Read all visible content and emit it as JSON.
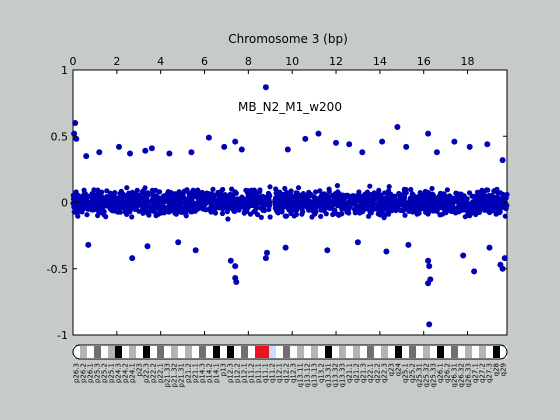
{
  "figure": {
    "background_color": "#c7cbc7",
    "axes_background_color": "#ffffff",
    "marker_color": "#0000b4",
    "zero_line_color": "#9a9a9a"
  },
  "chart_data": {
    "type": "scatter",
    "title": "Chromosome 3 (bp)",
    "annotation": "MB_N2_M1_w200",
    "xlabel": "",
    "ylabel": "",
    "xlim": [
      0,
      19.8
    ],
    "ylim": [
      -1,
      1
    ],
    "x_ticks": [
      0,
      2,
      4,
      6,
      8,
      10,
      12,
      14,
      16,
      18
    ],
    "x_tick_labels": [
      "0",
      "2",
      "4",
      "6",
      "8",
      "10",
      "12",
      "14",
      "16",
      "18"
    ],
    "x_axis_position": "top",
    "y_ticks": [
      1,
      0.5,
      0,
      -0.5,
      -1
    ],
    "y_tick_labels": [
      "1",
      "0.5",
      "0",
      "-0.5",
      "-1"
    ],
    "grid": false,
    "reference_line": {
      "y": 0
    },
    "band": {
      "x_range": [
        -0.05,
        0.45
      ],
      "y_range": [
        -0.3,
        0.3
      ],
      "note": "dense cloud of points across the chromosome"
    },
    "points": [
      {
        "x": 0.1,
        "y": 0.6
      },
      {
        "x": 0.05,
        "y": 0.52
      },
      {
        "x": 0.15,
        "y": 0.48
      },
      {
        "x": 0.6,
        "y": 0.35
      },
      {
        "x": 1.2,
        "y": 0.38
      },
      {
        "x": 2.1,
        "y": 0.42
      },
      {
        "x": 2.6,
        "y": 0.37
      },
      {
        "x": 3.3,
        "y": 0.39
      },
      {
        "x": 3.6,
        "y": 0.41
      },
      {
        "x": 4.4,
        "y": 0.37
      },
      {
        "x": 5.4,
        "y": 0.38
      },
      {
        "x": 6.2,
        "y": 0.49
      },
      {
        "x": 6.9,
        "y": 0.42
      },
      {
        "x": 7.4,
        "y": 0.46
      },
      {
        "x": 7.7,
        "y": 0.4
      },
      {
        "x": 8.8,
        "y": 0.87
      },
      {
        "x": 9.8,
        "y": 0.4
      },
      {
        "x": 10.6,
        "y": 0.48
      },
      {
        "x": 11.2,
        "y": 0.52
      },
      {
        "x": 12.0,
        "y": 0.45
      },
      {
        "x": 12.6,
        "y": 0.44
      },
      {
        "x": 13.2,
        "y": 0.38
      },
      {
        "x": 14.1,
        "y": 0.46
      },
      {
        "x": 14.8,
        "y": 0.57
      },
      {
        "x": 15.2,
        "y": 0.42
      },
      {
        "x": 16.2,
        "y": 0.52
      },
      {
        "x": 16.6,
        "y": 0.38
      },
      {
        "x": 17.4,
        "y": 0.46
      },
      {
        "x": 18.1,
        "y": 0.42
      },
      {
        "x": 18.9,
        "y": 0.44
      },
      {
        "x": 19.6,
        "y": 0.32
      },
      {
        "x": 0.7,
        "y": -0.32
      },
      {
        "x": 2.7,
        "y": -0.42
      },
      {
        "x": 3.4,
        "y": -0.33
      },
      {
        "x": 4.8,
        "y": -0.3
      },
      {
        "x": 5.6,
        "y": -0.36
      },
      {
        "x": 7.4,
        "y": -0.57
      },
      {
        "x": 7.45,
        "y": -0.6
      },
      {
        "x": 7.4,
        "y": -0.48
      },
      {
        "x": 7.2,
        "y": -0.44
      },
      {
        "x": 8.8,
        "y": -0.42
      },
      {
        "x": 8.85,
        "y": -0.38
      },
      {
        "x": 9.7,
        "y": -0.34
      },
      {
        "x": 11.6,
        "y": -0.36
      },
      {
        "x": 13.0,
        "y": -0.3
      },
      {
        "x": 14.3,
        "y": -0.37
      },
      {
        "x": 15.3,
        "y": -0.32
      },
      {
        "x": 16.2,
        "y": -0.44
      },
      {
        "x": 16.25,
        "y": -0.48
      },
      {
        "x": 16.3,
        "y": -0.58
      },
      {
        "x": 16.2,
        "y": -0.61
      },
      {
        "x": 16.25,
        "y": -0.92
      },
      {
        "x": 17.8,
        "y": -0.4
      },
      {
        "x": 18.3,
        "y": -0.52
      },
      {
        "x": 19.0,
        "y": -0.34
      },
      {
        "x": 19.5,
        "y": -0.47
      },
      {
        "x": 19.6,
        "y": -0.5
      },
      {
        "x": 19.7,
        "y": -0.42
      }
    ],
    "gap": {
      "x_range": [
        9.0,
        9.2
      ],
      "note": "centromere gap"
    }
  },
  "ideogram": {
    "centromere_color": "#e8141a",
    "highlight_color": "#c8dcff",
    "bands": [
      {
        "label": "p26.3",
        "stain": "w"
      },
      {
        "label": "p26.2",
        "stain": "g"
      },
      {
        "label": "p26.1",
        "stain": "w"
      },
      {
        "label": "p25.3",
        "stain": "g"
      },
      {
        "label": "p25.2",
        "stain": "w"
      },
      {
        "label": "p25.1",
        "stain": "g"
      },
      {
        "label": "p24.3",
        "stain": "k"
      },
      {
        "label": "p24.2",
        "stain": "w"
      },
      {
        "label": "p24.1",
        "stain": "g"
      },
      {
        "label": "p23",
        "stain": "w"
      },
      {
        "label": "p22.3",
        "stain": "k"
      },
      {
        "label": "p22.2",
        "stain": "w"
      },
      {
        "label": "p22.1",
        "stain": "g"
      },
      {
        "label": "p21.33",
        "stain": "w"
      },
      {
        "label": "p21.32",
        "stain": "g"
      },
      {
        "label": "p21.31",
        "stain": "w"
      },
      {
        "label": "p21.2",
        "stain": "g"
      },
      {
        "label": "p21.1",
        "stain": "w"
      },
      {
        "label": "p14.3",
        "stain": "g"
      },
      {
        "label": "p14.2",
        "stain": "w"
      },
      {
        "label": "p14.1",
        "stain": "k"
      },
      {
        "label": "p13",
        "stain": "w"
      },
      {
        "label": "p12.3",
        "stain": "k"
      },
      {
        "label": "p12.2",
        "stain": "w"
      },
      {
        "label": "p12.1",
        "stain": "g"
      },
      {
        "label": "p11.2",
        "stain": "w"
      },
      {
        "label": "p11.1",
        "stain": "c"
      },
      {
        "label": "q11.1",
        "stain": "c"
      },
      {
        "label": "q11.2",
        "stain": "h"
      },
      {
        "label": "q12.1",
        "stain": "w"
      },
      {
        "label": "q12.2",
        "stain": "g"
      },
      {
        "label": "q12.3",
        "stain": "w"
      },
      {
        "label": "q13.11",
        "stain": "g"
      },
      {
        "label": "q13.12",
        "stain": "w"
      },
      {
        "label": "q13.13",
        "stain": "g"
      },
      {
        "label": "q13.2",
        "stain": "w"
      },
      {
        "label": "q13.31",
        "stain": "k"
      },
      {
        "label": "q13.32",
        "stain": "w"
      },
      {
        "label": "q13.33",
        "stain": "g"
      },
      {
        "label": "q21.1",
        "stain": "w"
      },
      {
        "label": "q21.2",
        "stain": "g"
      },
      {
        "label": "q21.3",
        "stain": "w"
      },
      {
        "label": "q22.1",
        "stain": "g"
      },
      {
        "label": "q22.2",
        "stain": "w"
      },
      {
        "label": "q22.3",
        "stain": "g"
      },
      {
        "label": "q23",
        "stain": "w"
      },
      {
        "label": "q24",
        "stain": "k"
      },
      {
        "label": "q25.1",
        "stain": "w"
      },
      {
        "label": "q25.2",
        "stain": "g"
      },
      {
        "label": "q25.31",
        "stain": "w"
      },
      {
        "label": "q25.32",
        "stain": "g"
      },
      {
        "label": "q25.33",
        "stain": "w"
      },
      {
        "label": "q26.1",
        "stain": "k"
      },
      {
        "label": "q26.2",
        "stain": "w"
      },
      {
        "label": "q26.31",
        "stain": "g"
      },
      {
        "label": "q26.32",
        "stain": "w"
      },
      {
        "label": "q26.33",
        "stain": "g"
      },
      {
        "label": "q27.1",
        "stain": "w"
      },
      {
        "label": "q27.2",
        "stain": "g"
      },
      {
        "label": "q27.3",
        "stain": "w"
      },
      {
        "label": "q28",
        "stain": "k"
      },
      {
        "label": "q29",
        "stain": "w"
      }
    ]
  }
}
